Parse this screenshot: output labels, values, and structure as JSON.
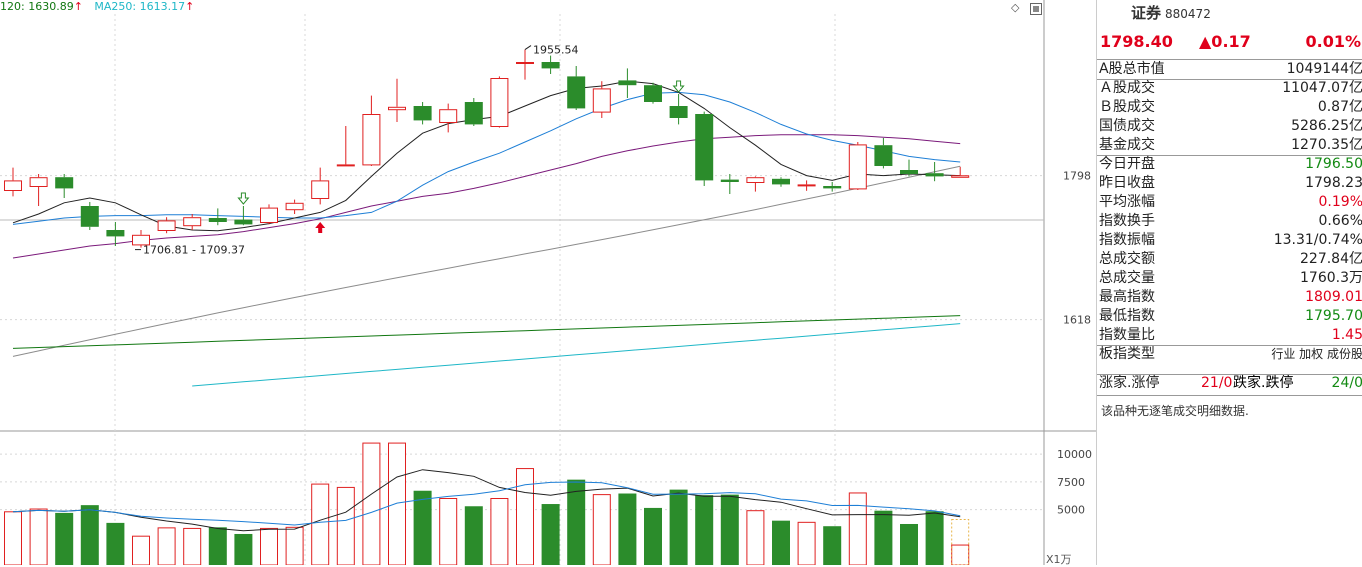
{
  "legend": {
    "ma120": "120: 1630.89",
    "ma250": "MA250: 1613.17",
    "arrow": "↑"
  },
  "chart_data": {
    "type": "candlestick",
    "price_axis": {
      "ticks": [
        1798,
        1618
      ],
      "range": [
        1480,
        2000
      ]
    },
    "volume_axis": {
      "ticks": [
        10000,
        7500,
        5000
      ],
      "range": [
        0,
        12000
      ],
      "unit_label": "X1万"
    },
    "annotations": {
      "high": "1955.54",
      "low": "1706.81 - 1709.37"
    },
    "colors": {
      "up": "#e02020",
      "down": "#2b8c2b",
      "ma5": "#222222",
      "ma10": "#1e7fd6",
      "ma20": "#7b1a7b",
      "ma60": "#8c8c8c",
      "ma120": "#117711",
      "ma250": "#1fb7c7"
    },
    "candles": [
      {
        "o": 1780,
        "c": 1792,
        "h": 1808,
        "l": 1772
      },
      {
        "o": 1785,
        "c": 1796,
        "h": 1800,
        "l": 1760
      },
      {
        "o": 1796,
        "c": 1782,
        "h": 1800,
        "l": 1770
      },
      {
        "o": 1760,
        "c": 1734,
        "h": 1765,
        "l": 1730
      },
      {
        "o": 1730,
        "c": 1722,
        "h": 1740,
        "l": 1710
      },
      {
        "o": 1712,
        "c": 1724,
        "h": 1730,
        "l": 1708
      },
      {
        "o": 1730,
        "c": 1742,
        "h": 1746,
        "l": 1726
      },
      {
        "o": 1736,
        "c": 1746,
        "h": 1750,
        "l": 1730
      },
      {
        "o": 1745,
        "c": 1740,
        "h": 1757,
        "l": 1736
      },
      {
        "o": 1743,
        "c": 1737,
        "h": 1760,
        "l": 1736
      },
      {
        "o": 1740,
        "c": 1758,
        "h": 1762,
        "l": 1737
      },
      {
        "o": 1756,
        "c": 1764,
        "h": 1768,
        "l": 1750
      },
      {
        "o": 1770,
        "c": 1792,
        "h": 1808,
        "l": 1762
      },
      {
        "o": 1812,
        "c": 1812,
        "h": 1860,
        "l": 1810
      },
      {
        "o": 1812,
        "c": 1875,
        "h": 1898,
        "l": 1810
      },
      {
        "o": 1881,
        "c": 1884,
        "h": 1919,
        "l": 1865
      },
      {
        "o": 1885,
        "c": 1867,
        "h": 1890,
        "l": 1862
      },
      {
        "o": 1865,
        "c": 1881,
        "h": 1888,
        "l": 1852
      },
      {
        "o": 1890,
        "c": 1862,
        "h": 1895,
        "l": 1860
      },
      {
        "o": 1860,
        "c": 1920,
        "h": 1922,
        "l": 1858
      },
      {
        "o": 1940,
        "c": 1940,
        "h": 1955.5,
        "l": 1918
      },
      {
        "o": 1940,
        "c": 1932,
        "h": 1948,
        "l": 1925
      },
      {
        "o": 1922,
        "c": 1882,
        "h": 1935,
        "l": 1880
      },
      {
        "o": 1878,
        "c": 1907,
        "h": 1916,
        "l": 1870
      },
      {
        "o": 1917,
        "c": 1911,
        "h": 1932,
        "l": 1895
      },
      {
        "o": 1911,
        "c": 1890,
        "h": 1914,
        "l": 1888
      },
      {
        "o": 1885,
        "c": 1870,
        "h": 1900,
        "l": 1862
      },
      {
        "o": 1875,
        "c": 1792,
        "h": 1878,
        "l": 1785
      },
      {
        "o": 1793,
        "c": 1790,
        "h": 1800,
        "l": 1775
      },
      {
        "o": 1790,
        "c": 1796,
        "h": 1797,
        "l": 1778
      },
      {
        "o": 1794,
        "c": 1787,
        "h": 1796,
        "l": 1784
      },
      {
        "o": 1786,
        "c": 1787,
        "h": 1792,
        "l": 1779
      },
      {
        "o": 1785,
        "c": 1782,
        "h": 1790,
        "l": 1778
      },
      {
        "o": 1782,
        "c": 1837,
        "h": 1840,
        "l": 1780
      },
      {
        "o": 1836,
        "c": 1810,
        "h": 1845,
        "l": 1807
      },
      {
        "o": 1805,
        "c": 1800,
        "h": 1818,
        "l": 1797
      },
      {
        "o": 1801,
        "c": 1797,
        "h": 1815,
        "l": 1791
      },
      {
        "o": 1796.5,
        "c": 1798.4,
        "h": 1809,
        "l": 1795.7
      }
    ],
    "volume": [
      4800,
      5050,
      4700,
      5400,
      3800,
      2600,
      3350,
      3300,
      3400,
      2800,
      3300,
      3400,
      7300,
      7000,
      11000,
      11000,
      6700,
      6000,
      5300,
      6000,
      8700,
      5500,
      7700,
      6350,
      6450,
      5150,
      6800,
      6300,
      6350,
      4900,
      4000,
      3850,
      3500,
      6500,
      4900,
      3700,
      4850,
      1800
    ],
    "ma_series": {
      "ma5": [
        1739,
        1750,
        1764,
        1770,
        1764,
        1749,
        1735,
        1730,
        1729,
        1733,
        1738,
        1745,
        1752,
        1767,
        1797,
        1826,
        1851,
        1863,
        1868,
        1872,
        1885,
        1898,
        1907,
        1910,
        1916,
        1913,
        1902,
        1882,
        1858,
        1836,
        1812,
        1798,
        1792,
        1800,
        1798,
        1800,
        1799,
        1798
      ],
      "ma10": [
        1737,
        1741,
        1745,
        1747,
        1748,
        1748,
        1749,
        1749,
        1748,
        1747,
        1746,
        1745,
        1745,
        1748,
        1752,
        1766,
        1786,
        1803,
        1815,
        1826,
        1840,
        1854,
        1869,
        1882,
        1893,
        1901,
        1902,
        1899,
        1890,
        1877,
        1862,
        1850,
        1842,
        1836,
        1829,
        1822,
        1818,
        1815
      ],
      "ma20": [
        1695,
        1700,
        1705,
        1710,
        1713,
        1717,
        1720,
        1722,
        1724,
        1728,
        1733,
        1738,
        1744,
        1752,
        1760,
        1766,
        1772,
        1776,
        1782,
        1789,
        1797,
        1805,
        1813,
        1822,
        1829,
        1835,
        1840,
        1844,
        1846,
        1848,
        1849,
        1849,
        1849,
        1848,
        1846,
        1844,
        1841,
        1838
      ]
    }
  },
  "panel": {
    "title": "证券",
    "code": "880472",
    "price": "1798.40",
    "change": "▲0.17",
    "pct": "0.01%",
    "rows": [
      {
        "label": "A股总市值",
        "value": "1049144亿",
        "cls": ""
      },
      {
        "label": "Ａ股成交",
        "value": "11047.07亿",
        "cls": ""
      },
      {
        "label": "Ｂ股成交",
        "value": "0.87亿",
        "cls": ""
      },
      {
        "label": "国债成交",
        "value": "5286.25亿",
        "cls": ""
      },
      {
        "label": "基金成交",
        "value": "1270.35亿",
        "cls": ""
      },
      {
        "label": "今日开盘",
        "value": "1796.50",
        "cls": "green"
      },
      {
        "label": "昨日收盘",
        "value": "1798.23",
        "cls": ""
      },
      {
        "label": "平均涨幅",
        "value": "0.19%",
        "cls": "red"
      },
      {
        "label": "指数换手",
        "value": "0.66%",
        "cls": ""
      },
      {
        "label": "指数振幅",
        "value": "13.31/0.74%",
        "cls": ""
      },
      {
        "label": "总成交额",
        "value": "227.84亿",
        "cls": ""
      },
      {
        "label": "总成交量",
        "value": "1760.3万",
        "cls": ""
      },
      {
        "label": "最高指数",
        "value": "1809.01",
        "cls": "red"
      },
      {
        "label": "最低指数",
        "value": "1795.70",
        "cls": "green"
      },
      {
        "label": "指数量比",
        "value": "1.45",
        "cls": "red"
      },
      {
        "label": "板指类型",
        "value": "行业 加权 成份股",
        "cls": ""
      }
    ],
    "updown": {
      "label1": "涨家.涨停",
      "val1": "21/0",
      "label2": "跌家.跌停",
      "val2": "24/0"
    },
    "note": "该品种无逐笔成交明细数据."
  }
}
